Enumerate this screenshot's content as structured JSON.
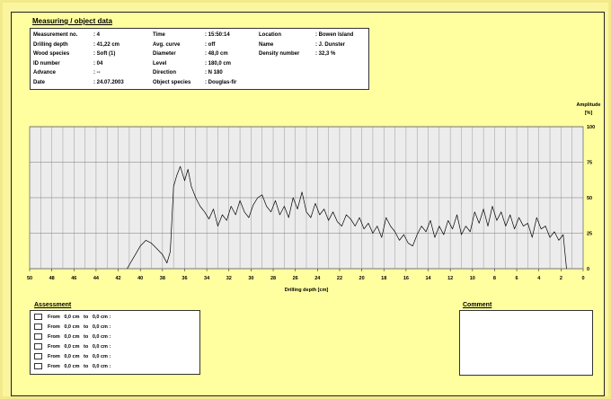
{
  "header": {
    "title": "Measuring / object data"
  },
  "info": {
    "col1": [
      {
        "label": "Measurement no.",
        "value": ": 4"
      },
      {
        "label": "Drilling depth",
        "value": ": 41,22 cm"
      },
      {
        "label": "Wood species",
        "value": ": Soft (1)"
      },
      {
        "label": "ID number",
        "value": ": 04"
      },
      {
        "label": "Advance",
        "value": ": --"
      },
      {
        "label": "Date",
        "value": ": 24.07.2003"
      }
    ],
    "col2": [
      {
        "label": "Time",
        "value": ": 15:50:14"
      },
      {
        "label": "Avg. curve",
        "value": ": off"
      },
      {
        "label": "Diameter",
        "value": ": 48,0 cm"
      },
      {
        "label": "Level",
        "value": ": 180,0 cm"
      },
      {
        "label": "Direction",
        "value": ": N 180"
      },
      {
        "label": "Object species",
        "value": ": Douglas-fir"
      }
    ],
    "col3": [
      {
        "label": "Location",
        "value": ": Bowen Island"
      },
      {
        "label": "Name",
        "value": ": J. Dunster"
      },
      {
        "label": "Density number",
        "value": ": 32,3 %"
      }
    ]
  },
  "chart_data": {
    "type": "line",
    "xlabel": "Drilling depth [cm]",
    "ylabel": "Amplitude [%]",
    "xlim": [
      50,
      0
    ],
    "ylim": [
      0,
      100
    ],
    "x_ticks": [
      50,
      48,
      46,
      44,
      42,
      40,
      38,
      36,
      34,
      32,
      30,
      28,
      26,
      24,
      22,
      20,
      18,
      16,
      14,
      12,
      10,
      8,
      6,
      4,
      2,
      0
    ],
    "y_ticks": [
      0,
      25,
      50,
      75,
      100
    ],
    "grid": true,
    "series": [
      {
        "color": "#000000",
        "points": [
          [
            41.2,
            0
          ],
          [
            40.6,
            8
          ],
          [
            40.0,
            16
          ],
          [
            39.5,
            20
          ],
          [
            39.0,
            18
          ],
          [
            38.5,
            14
          ],
          [
            38.0,
            10
          ],
          [
            37.6,
            4
          ],
          [
            37.3,
            12
          ],
          [
            37.0,
            58
          ],
          [
            36.7,
            66
          ],
          [
            36.4,
            72
          ],
          [
            36.0,
            62
          ],
          [
            35.7,
            70
          ],
          [
            35.4,
            58
          ],
          [
            35.0,
            50
          ],
          [
            34.6,
            44
          ],
          [
            34.2,
            40
          ],
          [
            33.8,
            35
          ],
          [
            33.4,
            42
          ],
          [
            33.0,
            30
          ],
          [
            32.6,
            38
          ],
          [
            32.2,
            34
          ],
          [
            31.8,
            44
          ],
          [
            31.4,
            38
          ],
          [
            31.0,
            48
          ],
          [
            30.6,
            40
          ],
          [
            30.2,
            36
          ],
          [
            29.8,
            45
          ],
          [
            29.4,
            50
          ],
          [
            29.0,
            52
          ],
          [
            28.6,
            44
          ],
          [
            28.2,
            40
          ],
          [
            27.8,
            48
          ],
          [
            27.4,
            38
          ],
          [
            27.0,
            44
          ],
          [
            26.6,
            36
          ],
          [
            26.2,
            50
          ],
          [
            25.8,
            42
          ],
          [
            25.4,
            54
          ],
          [
            25.0,
            40
          ],
          [
            24.6,
            36
          ],
          [
            24.2,
            46
          ],
          [
            23.8,
            38
          ],
          [
            23.4,
            42
          ],
          [
            23.0,
            34
          ],
          [
            22.6,
            40
          ],
          [
            22.2,
            33
          ],
          [
            21.8,
            30
          ],
          [
            21.4,
            38
          ],
          [
            21.0,
            35
          ],
          [
            20.6,
            30
          ],
          [
            20.2,
            36
          ],
          [
            19.8,
            28
          ],
          [
            19.4,
            32
          ],
          [
            19.0,
            25
          ],
          [
            18.6,
            30
          ],
          [
            18.2,
            22
          ],
          [
            17.8,
            36
          ],
          [
            17.4,
            30
          ],
          [
            17.0,
            26
          ],
          [
            16.6,
            20
          ],
          [
            16.2,
            24
          ],
          [
            15.8,
            18
          ],
          [
            15.4,
            16
          ],
          [
            15.0,
            24
          ],
          [
            14.6,
            30
          ],
          [
            14.2,
            26
          ],
          [
            13.8,
            34
          ],
          [
            13.4,
            22
          ],
          [
            13.0,
            30
          ],
          [
            12.6,
            24
          ],
          [
            12.2,
            34
          ],
          [
            11.8,
            28
          ],
          [
            11.4,
            38
          ],
          [
            11.0,
            24
          ],
          [
            10.6,
            30
          ],
          [
            10.2,
            26
          ],
          [
            9.8,
            40
          ],
          [
            9.4,
            32
          ],
          [
            9.0,
            42
          ],
          [
            8.6,
            30
          ],
          [
            8.2,
            44
          ],
          [
            7.8,
            34
          ],
          [
            7.4,
            40
          ],
          [
            7.0,
            30
          ],
          [
            6.6,
            38
          ],
          [
            6.2,
            28
          ],
          [
            5.8,
            36
          ],
          [
            5.4,
            30
          ],
          [
            5.0,
            32
          ],
          [
            4.6,
            22
          ],
          [
            4.2,
            36
          ],
          [
            3.8,
            28
          ],
          [
            3.4,
            30
          ],
          [
            3.0,
            22
          ],
          [
            2.6,
            26
          ],
          [
            2.2,
            20
          ],
          [
            1.8,
            24
          ],
          [
            1.5,
            0
          ]
        ]
      }
    ]
  },
  "assessment": {
    "title": "Assessment",
    "rows": [
      "From   0,0 cm   to   0,0 cm :",
      "From   0,0 cm   to   0,0 cm :",
      "From   0,0 cm   to   0,0 cm :",
      "From   0,0 cm   to   0,0 cm :",
      "From   0,0 cm   to   0,0 cm :",
      "From   0,0 cm   to   0,0 cm :"
    ]
  },
  "comment": {
    "title": "Comment",
    "text": ""
  }
}
